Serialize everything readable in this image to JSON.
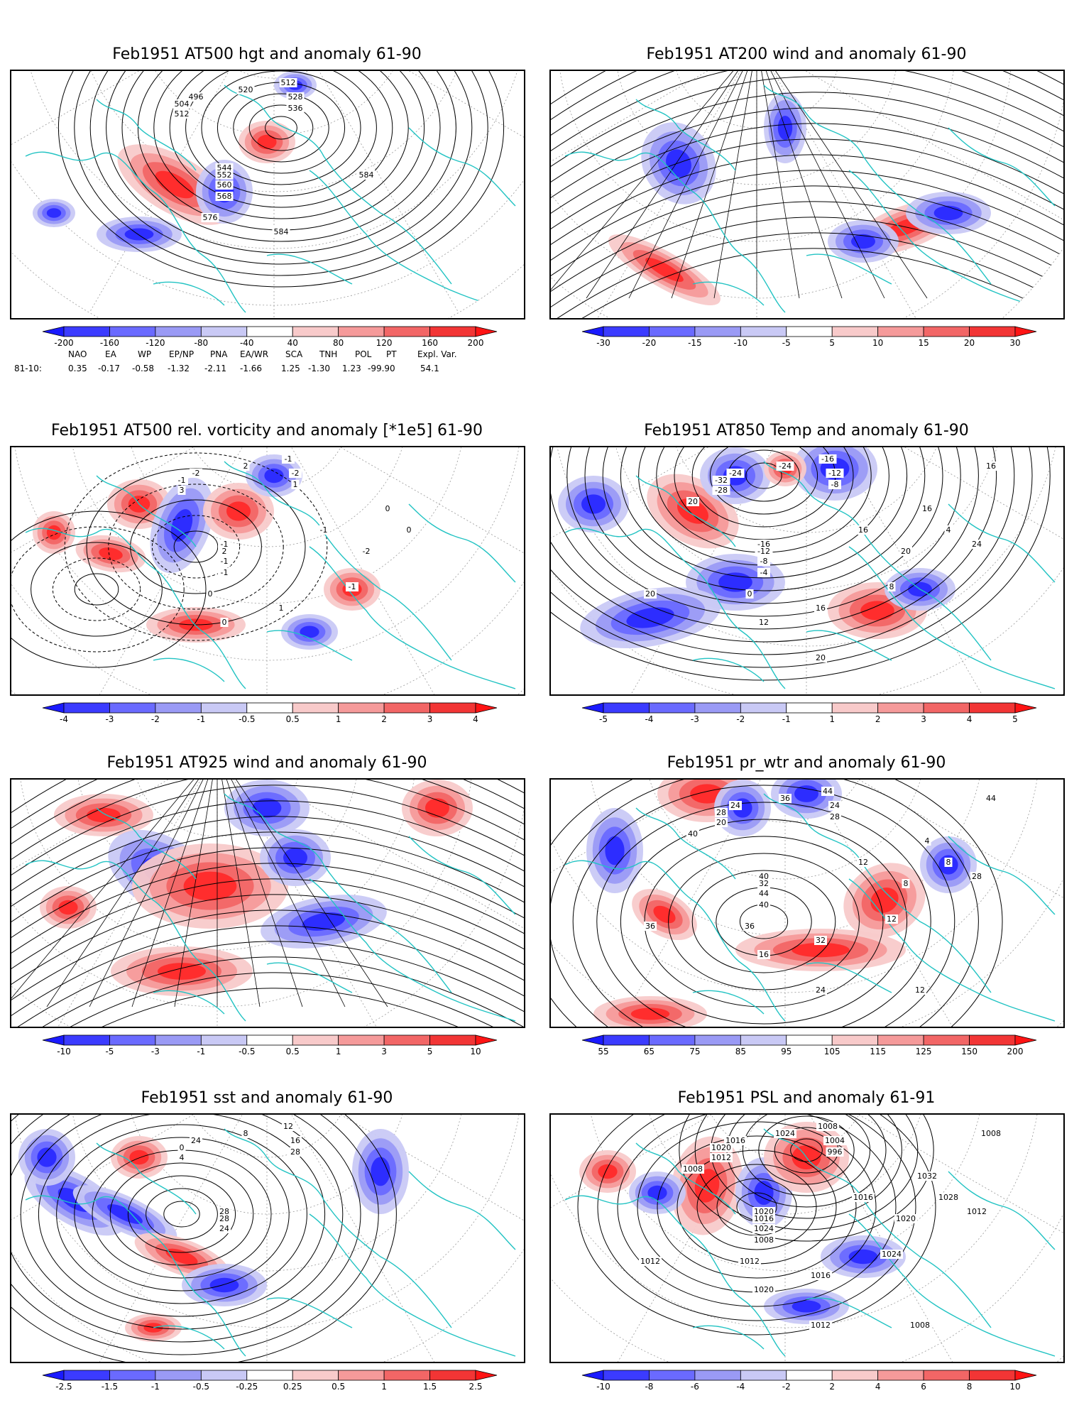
{
  "panels": [
    {
      "id": "p1",
      "title": "Feb1951 AT500 hgt and anomaly 61-90",
      "colorbar": [
        "-200",
        "-160",
        "-120",
        "-80",
        "-40",
        "40",
        "80",
        "120",
        "160",
        "200"
      ],
      "colors": [
        "#1a1aff",
        "#3b3bff",
        "#6a6aff",
        "#9a9af5",
        "#c9c9f5",
        "#ffffff",
        "#f8caca",
        "#f59a9a",
        "#f26666",
        "#f23535",
        "#ff1414"
      ],
      "contour_labels": [
        "496",
        "504",
        "512",
        "520",
        "512",
        "528",
        "536",
        "544",
        "552",
        "560",
        "568",
        "576",
        "584",
        "584"
      ]
    },
    {
      "id": "p2",
      "title": "Feb1951 AT200 wind and anomaly 61-90",
      "colorbar": [
        "-30",
        "-20",
        "-15",
        "-10",
        "-5",
        "5",
        "10",
        "15",
        "20",
        "30"
      ],
      "colors": [
        "#1a1aff",
        "#3b3bff",
        "#6a6aff",
        "#9a9af5",
        "#c9c9f5",
        "#ffffff",
        "#f8caca",
        "#f59a9a",
        "#f26666",
        "#f23535",
        "#ff1414"
      ],
      "contour_labels": []
    },
    {
      "id": "p3",
      "title": "Feb1951 AT500 rel. vorticity and anomaly [*1e5] 61-90",
      "colorbar": [
        "-4",
        "-3",
        "-2",
        "-1",
        "-0.5",
        "0.5",
        "1",
        "2",
        "3",
        "4"
      ],
      "colors": [
        "#1a1aff",
        "#3b3bff",
        "#6a6aff",
        "#9a9af5",
        "#c9c9f5",
        "#ffffff",
        "#f8caca",
        "#f59a9a",
        "#f26666",
        "#f23535",
        "#ff1414"
      ],
      "contour_labels": [
        "-2",
        "-1",
        "3",
        "2",
        "-1",
        "-2",
        "1",
        "-1",
        "2",
        "-1",
        "-1",
        "0",
        "1",
        "-2",
        "0",
        "0",
        "-1",
        "0",
        "-1"
      ]
    },
    {
      "id": "p4",
      "title": "Feb1951 AT850 Temp and anomaly 61-90",
      "colorbar": [
        "-5",
        "-4",
        "-3",
        "-2",
        "-1",
        "1",
        "2",
        "3",
        "4",
        "5"
      ],
      "colors": [
        "#1a1aff",
        "#3b3bff",
        "#6a6aff",
        "#9a9af5",
        "#c9c9f5",
        "#ffffff",
        "#f8caca",
        "#f59a9a",
        "#f26666",
        "#f23535",
        "#ff1414"
      ],
      "contour_labels": [
        "-24",
        "-32",
        "-28",
        "-24",
        "-16",
        "-12",
        "-8",
        "-16",
        "-12",
        "-8",
        "-4",
        "0",
        "16",
        "20",
        "16",
        "4",
        "8",
        "12",
        "16",
        "24",
        "20",
        "20",
        "20",
        "16"
      ]
    },
    {
      "id": "p5",
      "title": "Feb1951 AT925 wind and anomaly 61-90",
      "colorbar": [
        "-10",
        "-5",
        "-3",
        "-1",
        "-0.5",
        "0.5",
        "1",
        "3",
        "5",
        "10"
      ],
      "colors": [
        "#1a1aff",
        "#3b3bff",
        "#6a6aff",
        "#9a9af5",
        "#c9c9f5",
        "#ffffff",
        "#f8caca",
        "#f59a9a",
        "#f26666",
        "#f23535",
        "#ff1414"
      ],
      "contour_labels": []
    },
    {
      "id": "p6",
      "title": "Feb1951 pr_wtr and anomaly 61-90",
      "colorbar": [
        "55",
        "65",
        "75",
        "85",
        "95",
        "105",
        "115",
        "125",
        "150",
        "200"
      ],
      "colors": [
        "#1a1aff",
        "#3b3bff",
        "#6a6aff",
        "#9a9af5",
        "#c9c9f5",
        "#ffffff",
        "#f8caca",
        "#f59a9a",
        "#f26666",
        "#f23535",
        "#ff1414"
      ],
      "contour_labels": [
        "24",
        "28",
        "20",
        "36",
        "44",
        "24",
        "28",
        "40",
        "32",
        "44",
        "40",
        "36",
        "32",
        "8",
        "4",
        "8",
        "12",
        "16",
        "12",
        "28",
        "24",
        "36",
        "40",
        "44",
        "12"
      ]
    },
    {
      "id": "p7",
      "title": "Feb1951 sst and anomaly 61-90",
      "colorbar": [
        "-2.5",
        "-1.5",
        "-1",
        "-0.5",
        "-0.25",
        "0.25",
        "0.5",
        "1",
        "1.5",
        "2.5"
      ],
      "colors": [
        "#1a1aff",
        "#3b3bff",
        "#6a6aff",
        "#9a9af5",
        "#c9c9f5",
        "#ffffff",
        "#f8caca",
        "#f59a9a",
        "#f26666",
        "#f23535",
        "#ff1414"
      ],
      "contour_labels": [
        "24",
        "0",
        "4",
        "8",
        "12",
        "16",
        "28",
        "28",
        "28",
        "24"
      ]
    },
    {
      "id": "p8",
      "title": "Feb1951 PSL and anomaly 61-91",
      "colorbar": [
        "-10",
        "-8",
        "-6",
        "-4",
        "-2",
        "2",
        "4",
        "6",
        "8",
        "10"
      ],
      "colors": [
        "#1a1aff",
        "#3b3bff",
        "#6a6aff",
        "#9a9af5",
        "#c9c9f5",
        "#ffffff",
        "#f8caca",
        "#f59a9a",
        "#f26666",
        "#f23535",
        "#ff1414"
      ],
      "contour_labels": [
        "1016",
        "1020",
        "1012",
        "1024",
        "1008",
        "1004",
        "996",
        "1020",
        "1016",
        "1024",
        "1008",
        "1012",
        "1016",
        "1020",
        "1032",
        "1028",
        "1024",
        "1020",
        "1016",
        "1012",
        "1012",
        "1012",
        "1008",
        "1008",
        "1008"
      ]
    }
  ],
  "indices": {
    "headers": [
      "NAO",
      "EA",
      "WP",
      "EP/NP",
      "PNA",
      "EA/WR",
      "SCA",
      "TNH",
      "POL",
      "PT",
      "Expl. Var."
    ],
    "row_label": "81-10:",
    "values": [
      "0.35",
      "-0.17",
      "-0.58",
      "-1.32",
      "-2.11",
      "-1.66",
      "1.25",
      "-1.30",
      "1.23",
      "-99.90",
      "54.1"
    ]
  },
  "style": {
    "coast_color": "#22c3c3",
    "contour_color": "#000000"
  }
}
